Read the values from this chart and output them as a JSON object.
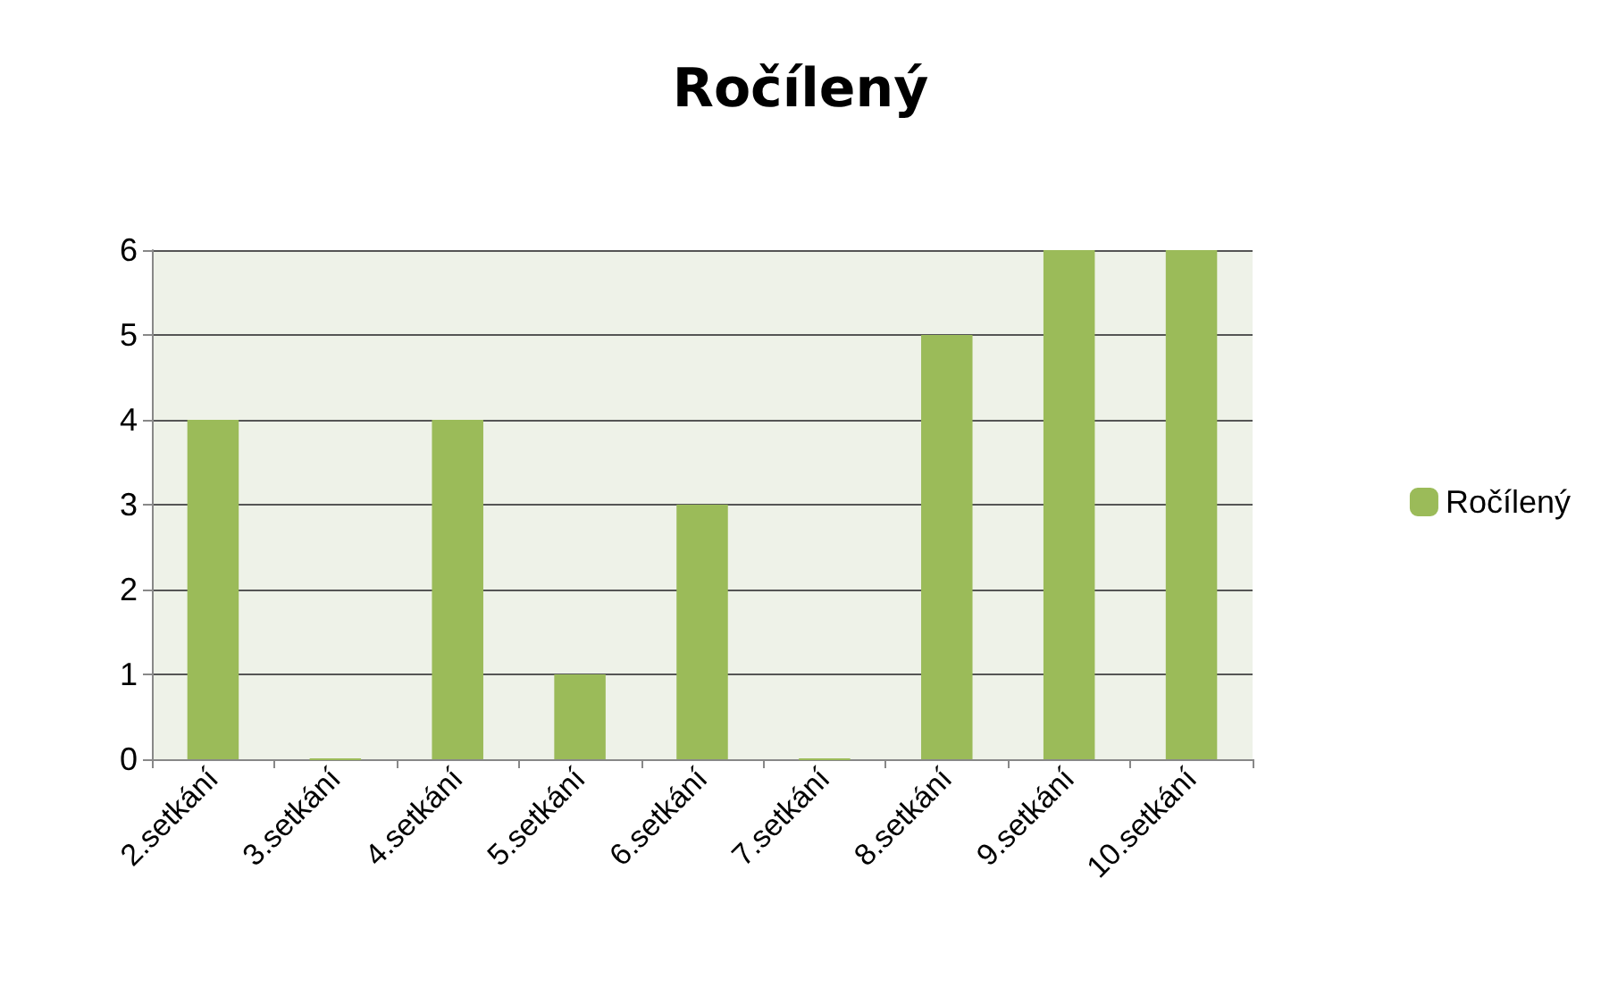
{
  "chart_data": {
    "type": "bar",
    "title": "Ročílený",
    "categories": [
      "2.setkání",
      "3.setkání",
      "4.setkání",
      "5.setkání",
      "6.setkání",
      "7.setkání",
      "8.setkání",
      "9.setkání",
      "10.setkání"
    ],
    "series": [
      {
        "name": "Ročílený",
        "color": "#9bbb59",
        "values": [
          4,
          0,
          4,
          1,
          3,
          0,
          5,
          6,
          6
        ]
      }
    ],
    "ylim": [
      0,
      6
    ],
    "yticks": [
      0,
      1,
      2,
      3,
      4,
      5,
      6
    ],
    "grid": "y",
    "legend": "right"
  }
}
